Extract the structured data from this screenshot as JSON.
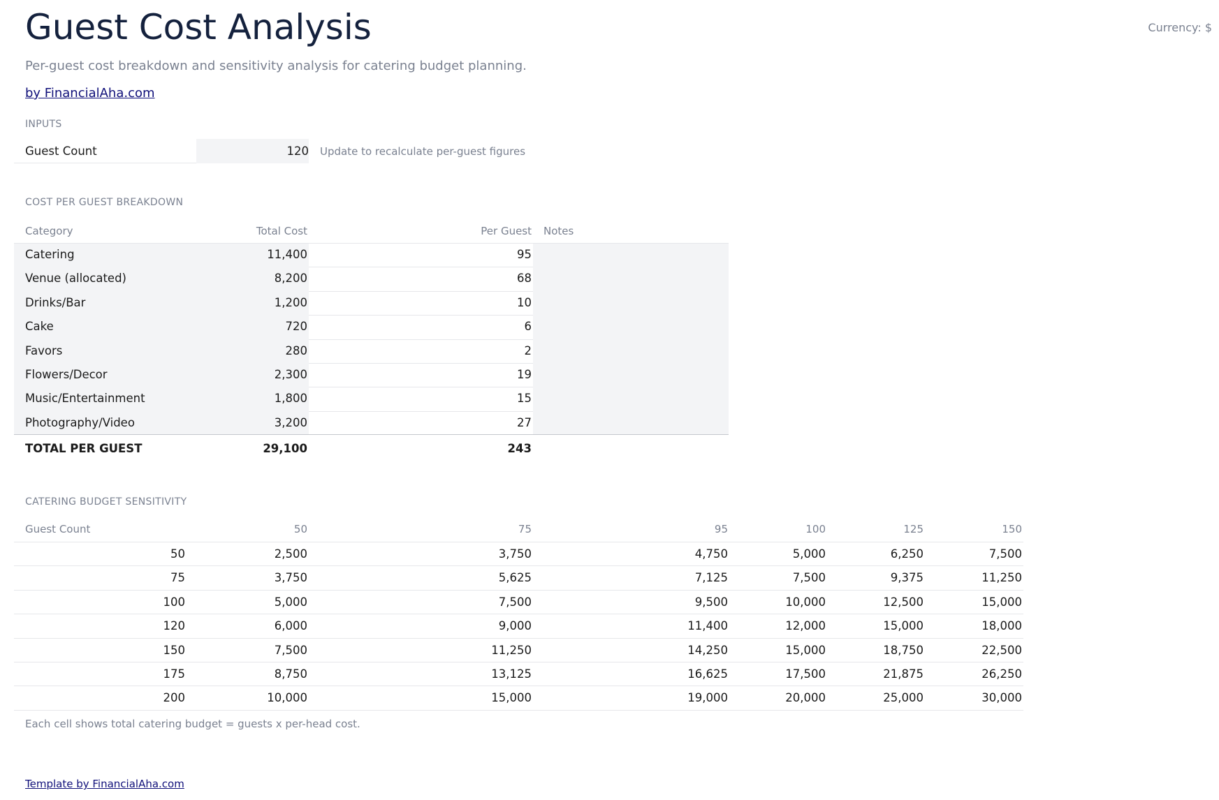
{
  "header": {
    "title": "Guest Cost Analysis",
    "currency": "Currency: $",
    "subtitle": "Per-guest cost breakdown and sensitivity analysis for catering budget planning.",
    "byline": "by FinancialAha.com"
  },
  "inputs": {
    "section_label": "INPUTS",
    "guest_count_label": "Guest Count",
    "guest_count_value": "120",
    "note": "Update to recalculate per-guest figures"
  },
  "breakdown": {
    "section_label": "COST PER GUEST BREAKDOWN",
    "columns": [
      "Category",
      "Total Cost",
      "Per Guest",
      "Notes"
    ],
    "rows": [
      {
        "category": "Catering",
        "total": "11,400",
        "per_guest": "95",
        "notes": ""
      },
      {
        "category": "Venue (allocated)",
        "total": "8,200",
        "per_guest": "68",
        "notes": ""
      },
      {
        "category": "Drinks/Bar",
        "total": "1,200",
        "per_guest": "10",
        "notes": ""
      },
      {
        "category": "Cake",
        "total": "720",
        "per_guest": "6",
        "notes": ""
      },
      {
        "category": "Favors",
        "total": "280",
        "per_guest": "2",
        "notes": ""
      },
      {
        "category": "Flowers/Decor",
        "total": "2,300",
        "per_guest": "19",
        "notes": ""
      },
      {
        "category": "Music/Entertainment",
        "total": "1,800",
        "per_guest": "15",
        "notes": ""
      },
      {
        "category": "Photography/Video",
        "total": "3,200",
        "per_guest": "27",
        "notes": ""
      }
    ],
    "total": {
      "label": "TOTAL PER GUEST",
      "total": "29,100",
      "per_guest": "243"
    }
  },
  "sensitivity": {
    "section_label": "CATERING BUDGET SENSITIVITY",
    "corner_label": "Guest Count",
    "columns": [
      "50",
      "75",
      "95",
      "100",
      "125",
      "150"
    ],
    "rows": [
      {
        "guests": "50",
        "values": [
          "2,500",
          "3,750",
          "4,750",
          "5,000",
          "6,250",
          "7,500"
        ]
      },
      {
        "guests": "75",
        "values": [
          "3,750",
          "5,625",
          "7,125",
          "7,500",
          "9,375",
          "11,250"
        ]
      },
      {
        "guests": "100",
        "values": [
          "5,000",
          "7,500",
          "9,500",
          "10,000",
          "12,500",
          "15,000"
        ]
      },
      {
        "guests": "120",
        "values": [
          "6,000",
          "9,000",
          "11,400",
          "12,000",
          "15,000",
          "18,000"
        ]
      },
      {
        "guests": "150",
        "values": [
          "7,500",
          "11,250",
          "14,250",
          "15,000",
          "18,750",
          "22,500"
        ]
      },
      {
        "guests": "175",
        "values": [
          "8,750",
          "13,125",
          "16,625",
          "17,500",
          "21,875",
          "26,250"
        ]
      },
      {
        "guests": "200",
        "values": [
          "10,000",
          "15,000",
          "19,000",
          "20,000",
          "25,000",
          "30,000"
        ]
      }
    ],
    "footnote": "Each cell shows total catering budget = guests x per-head cost."
  },
  "footer": {
    "link": "Template by FinancialAha.com"
  }
}
